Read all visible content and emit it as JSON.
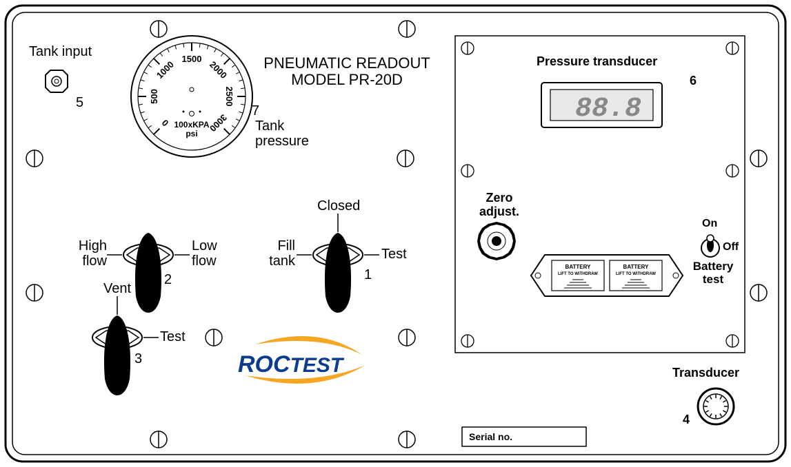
{
  "panel": {
    "outer_stroke": "#000000",
    "inner_stroke": "#000000",
    "bg": "#ffffff",
    "corner_radius": 25,
    "screw_stroke": "#000000",
    "screw_fill": "#ffffff"
  },
  "title": {
    "line1": "PNEUMATIC READOUT",
    "line2": "MODEL PR-20D",
    "fontsize": 22
  },
  "tank_input": {
    "label": "Tank input",
    "ref": "5",
    "fontsize": 20
  },
  "gauge": {
    "ticks": [
      "0",
      "500",
      "1000",
      "1500",
      "2000",
      "2500",
      "3000"
    ],
    "unit1": "100xKPA",
    "unit2": "psi",
    "label": "Tank\npressure",
    "ref": "7",
    "radius": 88,
    "start_deg": 225,
    "end_deg": -45,
    "tick_fontsize": 13,
    "unit_fontsize": 12
  },
  "knobs": {
    "knob1": {
      "ref": "1",
      "top": "Closed",
      "left": "Fill\ntank",
      "right": "Test"
    },
    "knob2": {
      "ref": "2",
      "left": "High\nflow",
      "right": "Low\nflow"
    },
    "knob3": {
      "ref": "3",
      "top": "Vent",
      "right": "Test"
    },
    "label_fontsize": 20
  },
  "transducer_box": {
    "title": "Pressure transducer",
    "ref": "6",
    "display_value": "88.8",
    "zero_label": "Zero\nadjust.",
    "switch_on": "On",
    "switch_off": "Off",
    "switch_label": "Battery\ntest",
    "battery_text1": "BATTERY",
    "battery_text2": "LIFT TO WITHDRAW",
    "title_fontsize": 18,
    "zero_fontsize": 18
  },
  "connector": {
    "label": "Transducer",
    "ref": "4",
    "fontsize": 18
  },
  "logo": {
    "text1": "ROC",
    "text2": "TEST",
    "color": "#0b3c8f",
    "swoosh": "#f5a623",
    "fontsize": 34
  },
  "serial": {
    "label": "Serial no.",
    "fontsize": 14
  }
}
